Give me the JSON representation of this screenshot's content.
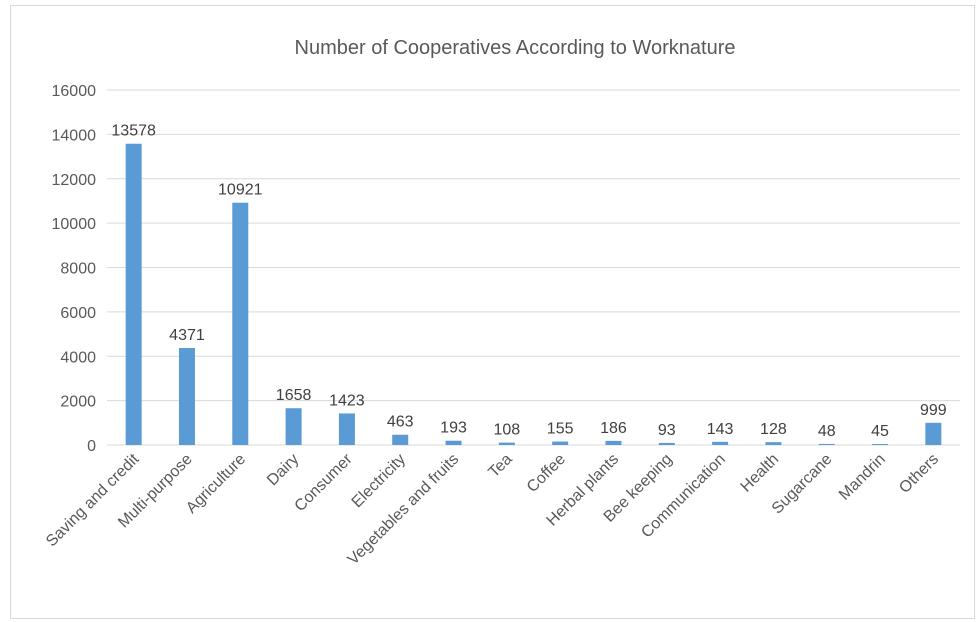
{
  "chart_data": {
    "type": "bar",
    "title": "Number of Cooperatives According to Worknature",
    "xlabel": "",
    "ylabel": "",
    "categories": [
      "Saving and credit",
      "Multi-purpose",
      "Agriculture",
      "Dairy",
      "Consumer",
      "Electricity",
      "Vegetables and fruits",
      "Tea",
      "Coffee",
      "Herbal plants",
      "Bee keeping",
      "Communication",
      "Health",
      "Sugarcane",
      "Mandrin",
      "Others"
    ],
    "values": [
      13578,
      4371,
      10921,
      1658,
      1423,
      463,
      193,
      108,
      155,
      186,
      93,
      143,
      128,
      48,
      45,
      999
    ],
    "ylim": [
      0,
      16000
    ],
    "yticks": [
      0,
      2000,
      4000,
      6000,
      8000,
      10000,
      12000,
      14000,
      16000
    ],
    "grid": true,
    "legend": "none",
    "bar_color": "#5b9bd5",
    "grid_color": "#d9d9d9",
    "text_color": "#595959"
  }
}
